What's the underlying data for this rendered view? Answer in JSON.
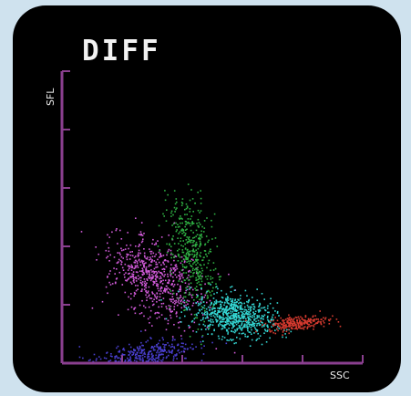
{
  "chart_data": {
    "type": "scatter",
    "title": "DIFF",
    "xlabel": "SSC",
    "ylabel": "SFL",
    "xlim": [
      0,
      5
    ],
    "ylim": [
      0,
      5
    ],
    "grid": false,
    "axis_color": "#8a3f8f",
    "series": [
      {
        "color": "#d05ad8",
        "center": [
          1.55,
          1.45
        ],
        "spread": [
          0.3,
          0.45
        ],
        "tilt": 0.9,
        "count": 650
      },
      {
        "color": "#2fb043",
        "center": [
          2.15,
          1.9
        ],
        "spread": [
          0.18,
          0.5
        ],
        "tilt": 0.15,
        "count": 420
      },
      {
        "color": "#34d6d3",
        "center": [
          2.85,
          0.82
        ],
        "spread": [
          0.33,
          0.18
        ],
        "tilt": -0.2,
        "count": 700
      },
      {
        "color": "#d43a2f",
        "center": [
          3.9,
          0.7
        ],
        "spread": [
          0.25,
          0.06
        ],
        "tilt": 0.1,
        "count": 260
      },
      {
        "color": "#4a3fd0",
        "center": [
          1.25,
          0.1
        ],
        "spread": [
          0.45,
          0.12
        ],
        "tilt": 0.25,
        "count": 420
      }
    ]
  }
}
